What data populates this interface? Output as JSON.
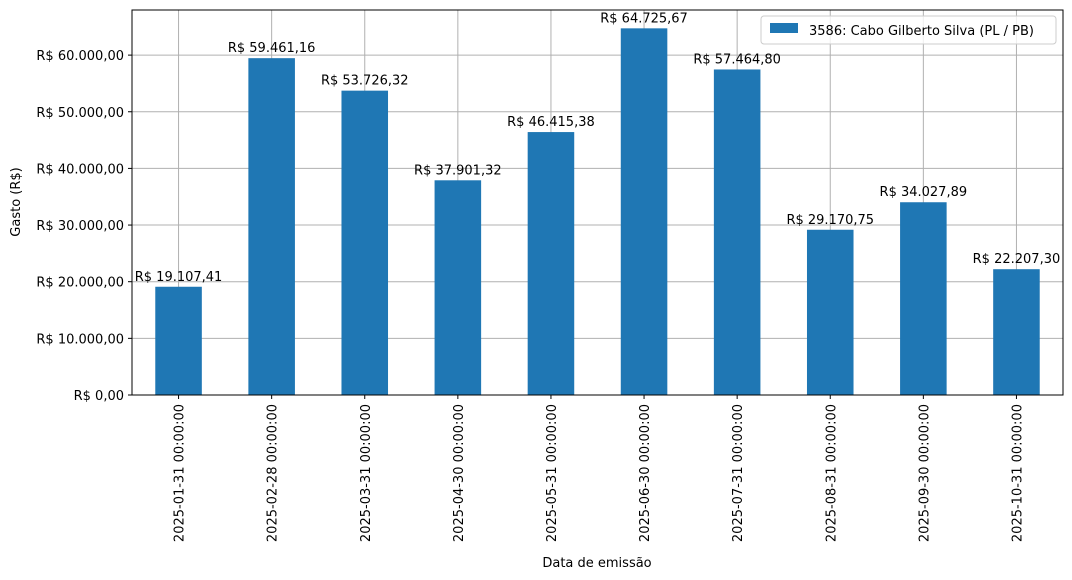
{
  "chart_data": {
    "type": "bar",
    "title": "",
    "xlabel": "Data de emissão",
    "ylabel": "Gasto (R$)",
    "ylim": [
      0,
      67962.95
    ],
    "grid": true,
    "legend_position": "top-right",
    "bar_color": "#1f77b4",
    "series": [
      {
        "name": "3586: Cabo Gilberto Silva (PL / PB)",
        "values": [
          19107.41,
          59461.16,
          53726.32,
          37901.32,
          46415.38,
          64725.67,
          57464.8,
          29170.75,
          34027.89,
          22207.3
        ]
      }
    ],
    "categories": [
      "2025-01-31 00:00:00",
      "2025-02-28 00:00:00",
      "2025-03-31 00:00:00",
      "2025-04-30 00:00:00",
      "2025-05-31 00:00:00",
      "2025-06-30 00:00:00",
      "2025-07-31 00:00:00",
      "2025-08-31 00:00:00",
      "2025-09-30 00:00:00",
      "2025-10-31 00:00:00"
    ],
    "data_labels": [
      "R$ 19.107,41",
      "R$ 59.461,16",
      "R$ 53.726,32",
      "R$ 37.901,32",
      "R$ 46.415,38",
      "R$ 64.725,67",
      "R$ 57.464,80",
      "R$ 29.170,75",
      "R$ 34.027,89",
      "R$ 22.207,30"
    ],
    "yticks": [
      {
        "value": 0,
        "label": "R$ 0,00"
      },
      {
        "value": 10000,
        "label": "R$ 10.000,00"
      },
      {
        "value": 20000,
        "label": "R$ 20.000,00"
      },
      {
        "value": 30000,
        "label": "R$ 30.000,00"
      },
      {
        "value": 40000,
        "label": "R$ 40.000,00"
      },
      {
        "value": 50000,
        "label": "R$ 50.000,00"
      },
      {
        "value": 60000,
        "label": "R$ 60.000,00"
      }
    ]
  }
}
